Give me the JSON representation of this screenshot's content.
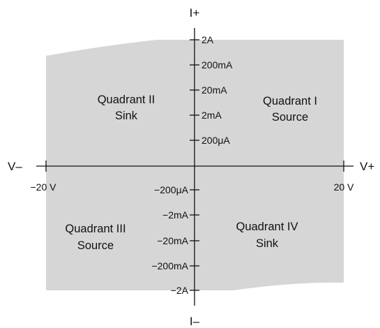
{
  "colors": {
    "region_fill": "#d6d6d6",
    "axis_stroke": "#111111",
    "text": "#111111"
  },
  "axes": {
    "i_plus": "I+",
    "i_minus": "I–",
    "v_plus": "V+",
    "v_minus": "V–",
    "x_left_tick": "−20 V",
    "x_right_tick": "20 V"
  },
  "y_ticks_positive": [
    "2A",
    "200mA",
    "20mA",
    "2mA",
    "200μA"
  ],
  "y_ticks_negative": [
    "−200μA",
    "−2mA",
    "−20mA",
    "−200mA",
    "−2A"
  ],
  "quadrants": {
    "q1": {
      "name": "Quadrant I",
      "role": "Source"
    },
    "q2": {
      "name": "Quadrant II",
      "role": "Sink"
    },
    "q3": {
      "name": "Quadrant III",
      "role": "Source"
    },
    "q4": {
      "name": "Quadrant IV",
      "role": "Sink"
    }
  }
}
